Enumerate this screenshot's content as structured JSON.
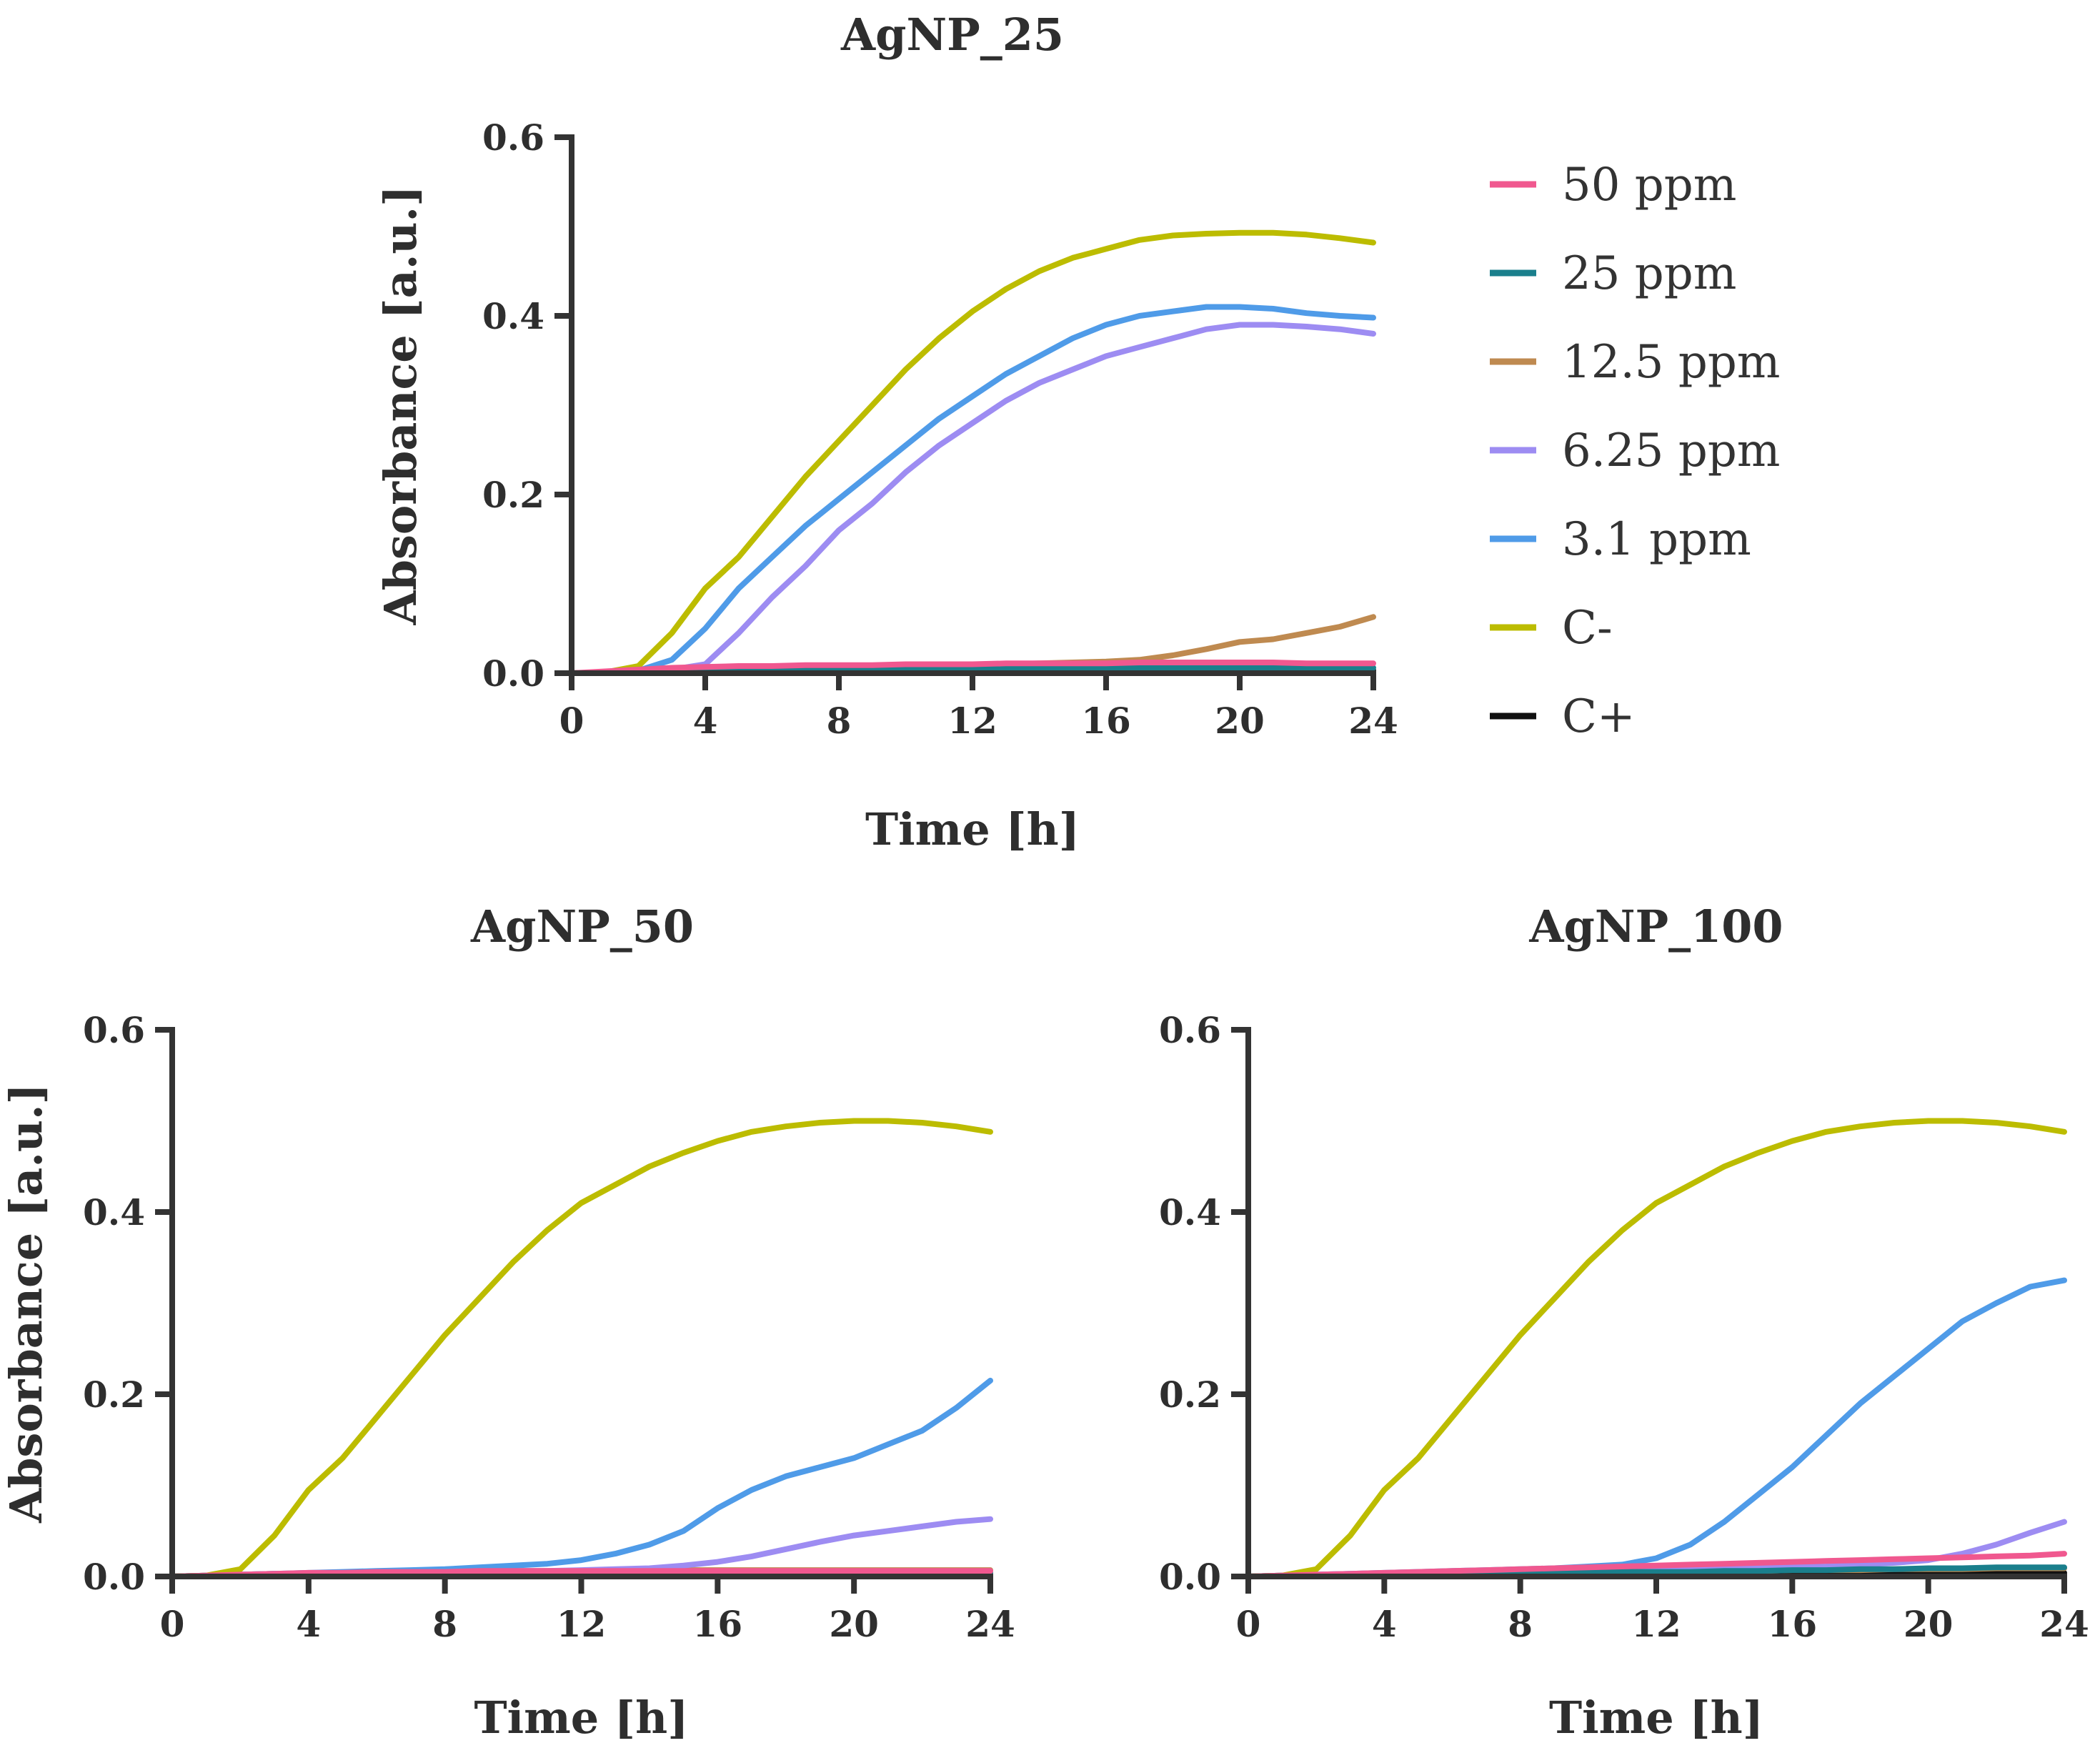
{
  "figure": {
    "legend": [
      {
        "name": "50 ppm",
        "color": "#f0588f"
      },
      {
        "name": "25 ppm",
        "color": "#1a7f8c"
      },
      {
        "name": "12.5 ppm",
        "color": "#bf8a50"
      },
      {
        "name": "6.25 ppm",
        "color": "#9d8cf2"
      },
      {
        "name": "3.1 ppm",
        "color": "#4f9be8"
      },
      {
        "name": "C-",
        "color": "#bcbc00"
      },
      {
        "name": "C+",
        "color": "#111111"
      }
    ]
  },
  "chart_data": [
    {
      "type": "line",
      "title": "AgNP_25",
      "xlabel": "Time [h]",
      "ylabel": "Absorbance [a.u.]",
      "xlim": [
        0,
        24
      ],
      "ylim": [
        0,
        0.6
      ],
      "xticks": [
        "0",
        "4",
        "8",
        "12",
        "16",
        "20",
        "24"
      ],
      "yticks": [
        "0.0",
        "0.2",
        "0.4",
        "0.6"
      ],
      "x": [
        0,
        1,
        2,
        3,
        4,
        5,
        6,
        7,
        8,
        9,
        10,
        11,
        12,
        13,
        14,
        15,
        16,
        17,
        18,
        19,
        20,
        21,
        22,
        23,
        24
      ],
      "series": [
        {
          "name": "50 ppm",
          "values": [
            0.0,
            0.002,
            0.004,
            0.006,
            0.007,
            0.008,
            0.008,
            0.009,
            0.009,
            0.009,
            0.01,
            0.01,
            0.01,
            0.011,
            0.011,
            0.011,
            0.011,
            0.012,
            0.012,
            0.012,
            0.012,
            0.012,
            0.011,
            0.011,
            0.011
          ]
        },
        {
          "name": "25 ppm",
          "values": [
            0.0,
            0.001,
            0.002,
            0.002,
            0.003,
            0.003,
            0.003,
            0.004,
            0.004,
            0.004,
            0.004,
            0.005,
            0.005,
            0.005,
            0.005,
            0.005,
            0.006,
            0.006,
            0.006,
            0.006,
            0.006,
            0.006,
            0.006,
            0.006,
            0.006
          ]
        },
        {
          "name": "12.5 ppm",
          "values": [
            0.0,
            0.001,
            0.002,
            0.003,
            0.004,
            0.004,
            0.005,
            0.006,
            0.006,
            0.007,
            0.008,
            0.008,
            0.009,
            0.01,
            0.011,
            0.012,
            0.013,
            0.015,
            0.02,
            0.027,
            0.035,
            0.038,
            0.045,
            0.052,
            0.063
          ]
        },
        {
          "name": "6.25 ppm",
          "values": [
            0.0,
            0.001,
            0.002,
            0.004,
            0.01,
            0.045,
            0.085,
            0.12,
            0.16,
            0.19,
            0.225,
            0.255,
            0.28,
            0.305,
            0.325,
            0.34,
            0.355,
            0.365,
            0.375,
            0.385,
            0.39,
            0.39,
            0.388,
            0.385,
            0.38
          ]
        },
        {
          "name": "3.1 ppm",
          "values": [
            0.0,
            0.001,
            0.003,
            0.015,
            0.05,
            0.095,
            0.13,
            0.165,
            0.195,
            0.225,
            0.255,
            0.285,
            0.31,
            0.335,
            0.355,
            0.375,
            0.39,
            0.4,
            0.405,
            0.41,
            0.41,
            0.408,
            0.403,
            0.4,
            0.398
          ]
        },
        {
          "name": "C-",
          "values": [
            0.0,
            0.001,
            0.008,
            0.045,
            0.095,
            0.13,
            0.175,
            0.22,
            0.26,
            0.3,
            0.34,
            0.375,
            0.405,
            0.43,
            0.45,
            0.465,
            0.475,
            0.485,
            0.49,
            0.492,
            0.493,
            0.493,
            0.491,
            0.487,
            0.482
          ]
        },
        {
          "name": "C+",
          "values": [
            0.0,
            0.0,
            0.001,
            0.001,
            0.001,
            0.002,
            0.002,
            0.002,
            0.002,
            0.002,
            0.003,
            0.003,
            0.003,
            0.003,
            0.003,
            0.003,
            0.003,
            0.003,
            0.003,
            0.003,
            0.003,
            0.003,
            0.003,
            0.003,
            0.003
          ]
        }
      ]
    },
    {
      "type": "line",
      "title": "AgNP_50",
      "xlabel": "Time [h]",
      "ylabel": "Absorbance [a.u.]",
      "xlim": [
        0,
        24
      ],
      "ylim": [
        0,
        0.6
      ],
      "xticks": [
        "0",
        "4",
        "8",
        "12",
        "16",
        "20",
        "24"
      ],
      "yticks": [
        "0.0",
        "0.2",
        "0.4",
        "0.6"
      ],
      "x": [
        0,
        1,
        2,
        3,
        4,
        5,
        6,
        7,
        8,
        9,
        10,
        11,
        12,
        13,
        14,
        15,
        16,
        17,
        18,
        19,
        20,
        21,
        22,
        23,
        24
      ],
      "series": [
        {
          "name": "50 ppm",
          "values": [
            0.0,
            0.001,
            0.002,
            0.003,
            0.004,
            0.004,
            0.005,
            0.005,
            0.005,
            0.006,
            0.006,
            0.006,
            0.006,
            0.006,
            0.006,
            0.006,
            0.006,
            0.006,
            0.006,
            0.006,
            0.006,
            0.006,
            0.006,
            0.006,
            0.006
          ]
        },
        {
          "name": "25 ppm",
          "values": [
            0.0,
            0.001,
            0.001,
            0.002,
            0.002,
            0.002,
            0.003,
            0.003,
            0.003,
            0.003,
            0.003,
            0.004,
            0.004,
            0.004,
            0.004,
            0.004,
            0.004,
            0.004,
            0.004,
            0.004,
            0.004,
            0.004,
            0.004,
            0.004,
            0.004
          ]
        },
        {
          "name": "12.5 ppm",
          "values": [
            0.0,
            0.001,
            0.002,
            0.003,
            0.003,
            0.004,
            0.004,
            0.005,
            0.005,
            0.005,
            0.006,
            0.006,
            0.006,
            0.007,
            0.007,
            0.007,
            0.007,
            0.007,
            0.007,
            0.007,
            0.007,
            0.007,
            0.007,
            0.007,
            0.007
          ]
        },
        {
          "name": "6.25 ppm",
          "values": [
            0.0,
            0.001,
            0.002,
            0.003,
            0.003,
            0.004,
            0.004,
            0.005,
            0.005,
            0.006,
            0.006,
            0.006,
            0.007,
            0.008,
            0.009,
            0.012,
            0.016,
            0.022,
            0.03,
            0.038,
            0.045,
            0.05,
            0.055,
            0.06,
            0.063
          ]
        },
        {
          "name": "3.1 ppm",
          "values": [
            0.0,
            0.001,
            0.002,
            0.003,
            0.004,
            0.005,
            0.006,
            0.007,
            0.008,
            0.01,
            0.012,
            0.014,
            0.018,
            0.025,
            0.035,
            0.05,
            0.075,
            0.095,
            0.11,
            0.12,
            0.13,
            0.145,
            0.16,
            0.185,
            0.215
          ]
        },
        {
          "name": "C-",
          "values": [
            0.0,
            0.001,
            0.008,
            0.045,
            0.095,
            0.13,
            0.175,
            0.22,
            0.265,
            0.305,
            0.345,
            0.38,
            0.41,
            0.43,
            0.45,
            0.465,
            0.478,
            0.488,
            0.494,
            0.498,
            0.5,
            0.5,
            0.498,
            0.494,
            0.488
          ]
        },
        {
          "name": "C+",
          "values": [
            0.0,
            0.0,
            0.001,
            0.001,
            0.001,
            0.001,
            0.001,
            0.001,
            0.001,
            0.001,
            0.001,
            0.002,
            0.002,
            0.002,
            0.002,
            0.002,
            0.002,
            0.002,
            0.002,
            0.002,
            0.002,
            0.002,
            0.002,
            0.002,
            0.002
          ]
        }
      ]
    },
    {
      "type": "line",
      "title": "AgNP_100",
      "xlabel": "Time [h]",
      "ylabel": "",
      "xlim": [
        0,
        24
      ],
      "ylim": [
        0,
        0.6
      ],
      "xticks": [
        "0",
        "4",
        "8",
        "12",
        "16",
        "20",
        "24"
      ],
      "yticks": [
        "0.0",
        "0.2",
        "0.4",
        "0.6"
      ],
      "x": [
        0,
        1,
        2,
        3,
        4,
        5,
        6,
        7,
        8,
        9,
        10,
        11,
        12,
        13,
        14,
        15,
        16,
        17,
        18,
        19,
        20,
        21,
        22,
        23,
        24
      ],
      "series": [
        {
          "name": "50 ppm",
          "values": [
            0.0,
            0.001,
            0.002,
            0.003,
            0.004,
            0.005,
            0.006,
            0.007,
            0.008,
            0.009,
            0.01,
            0.011,
            0.012,
            0.013,
            0.014,
            0.015,
            0.016,
            0.017,
            0.018,
            0.019,
            0.02,
            0.021,
            0.022,
            0.023,
            0.025
          ]
        },
        {
          "name": "25 ppm",
          "values": [
            0.0,
            0.001,
            0.001,
            0.002,
            0.002,
            0.003,
            0.003,
            0.003,
            0.004,
            0.004,
            0.004,
            0.005,
            0.005,
            0.005,
            0.006,
            0.006,
            0.007,
            0.007,
            0.008,
            0.008,
            0.009,
            0.009,
            0.01,
            0.01,
            0.01
          ]
        },
        {
          "name": "12.5 ppm",
          "values": [
            0.0,
            0.001,
            0.001,
            0.002,
            0.002,
            0.003,
            0.003,
            0.004,
            0.004,
            0.004,
            0.005,
            0.005,
            0.005,
            0.006,
            0.006,
            0.006,
            0.007,
            0.007,
            0.007,
            0.008,
            0.008,
            0.008,
            0.009,
            0.009,
            0.009
          ]
        },
        {
          "name": "6.25 ppm",
          "values": [
            0.0,
            0.001,
            0.002,
            0.003,
            0.003,
            0.004,
            0.005,
            0.005,
            0.006,
            0.006,
            0.007,
            0.007,
            0.008,
            0.008,
            0.009,
            0.009,
            0.01,
            0.011,
            0.013,
            0.015,
            0.018,
            0.025,
            0.035,
            0.048,
            0.06
          ]
        },
        {
          "name": "3.1 ppm",
          "values": [
            0.0,
            0.001,
            0.002,
            0.003,
            0.004,
            0.005,
            0.006,
            0.007,
            0.008,
            0.009,
            0.011,
            0.013,
            0.02,
            0.035,
            0.06,
            0.09,
            0.12,
            0.155,
            0.19,
            0.22,
            0.25,
            0.28,
            0.3,
            0.318,
            0.325
          ]
        },
        {
          "name": "C-",
          "values": [
            0.0,
            0.001,
            0.008,
            0.045,
            0.095,
            0.13,
            0.175,
            0.22,
            0.265,
            0.305,
            0.345,
            0.38,
            0.41,
            0.43,
            0.45,
            0.465,
            0.478,
            0.488,
            0.494,
            0.498,
            0.5,
            0.5,
            0.498,
            0.494,
            0.488
          ]
        },
        {
          "name": "C+",
          "values": [
            0.0,
            0.0,
            0.0,
            0.001,
            0.001,
            0.001,
            0.001,
            0.001,
            0.002,
            0.002,
            0.002,
            0.002,
            0.002,
            0.002,
            0.003,
            0.003,
            0.003,
            0.003,
            0.003,
            0.003,
            0.004,
            0.004,
            0.004,
            0.004,
            0.004
          ]
        }
      ]
    }
  ]
}
